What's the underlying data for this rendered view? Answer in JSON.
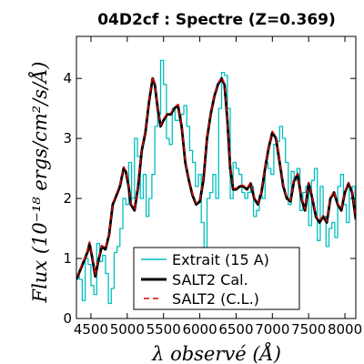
{
  "chart_data": {
    "type": "line",
    "title": "04D2cf : Spectre (Z=0.369)",
    "xlabel": "λ observé (Å)",
    "ylabel": "Flux (10⁻¹⁸ ergs/cm²/s/Å)",
    "xlim": [
      4300,
      8150
    ],
    "ylim": [
      0,
      4.7
    ],
    "xticks": [
      "4500",
      "5000",
      "5500",
      "6000",
      "6500",
      "7000",
      "7500",
      "8000"
    ],
    "xtick_values": [
      4500,
      5000,
      5500,
      6000,
      6500,
      7000,
      7500,
      8000
    ],
    "yticks": [
      "0",
      "1",
      "2",
      "3",
      "4"
    ],
    "ytick_values": [
      0,
      1,
      2,
      3,
      4
    ],
    "legend_position": "bottom-center",
    "series": [
      {
        "name": "Extrait (15 A)",
        "color": "#00bfbf",
        "style": "steps",
        "x": [
          4300,
          4340,
          4380,
          4420,
          4460,
          4500,
          4540,
          4580,
          4620,
          4660,
          4700,
          4740,
          4780,
          4820,
          4860,
          4900,
          4940,
          4980,
          5020,
          5060,
          5100,
          5140,
          5180,
          5220,
          5260,
          5300,
          5340,
          5380,
          5420,
          5460,
          5500,
          5540,
          5580,
          5620,
          5660,
          5700,
          5740,
          5780,
          5820,
          5860,
          5900,
          5940,
          5980,
          6020,
          6060,
          6100,
          6140,
          6180,
          6220,
          6260,
          6300,
          6340,
          6380,
          6420,
          6460,
          6500,
          6540,
          6580,
          6620,
          6660,
          6700,
          6740,
          6780,
          6820,
          6860,
          6900,
          6940,
          6980,
          7020,
          7060,
          7100,
          7140,
          7180,
          7220,
          7260,
          7300,
          7340,
          7380,
          7420,
          7460,
          7500,
          7540,
          7580,
          7620,
          7660,
          7700,
          7740,
          7780,
          7820,
          7860,
          7900,
          7940,
          7980,
          8020,
          8060,
          8100,
          8140
        ],
        "y": [
          0.7,
          0.65,
          0.3,
          1.0,
          0.9,
          0.55,
          0.4,
          1.25,
          0.95,
          1.05,
          0.75,
          0.25,
          0.5,
          1.1,
          1.2,
          1.5,
          2.0,
          1.9,
          2.6,
          2.0,
          3.0,
          2.7,
          2.0,
          2.4,
          1.7,
          2.0,
          2.4,
          3.2,
          3.4,
          4.3,
          3.9,
          3.0,
          2.9,
          3.5,
          3.3,
          3.3,
          3.4,
          3.55,
          3.2,
          2.8,
          2.6,
          2.2,
          2.4,
          1.6,
          1.0,
          2.0,
          2.1,
          2.4,
          2.0,
          3.5,
          4.1,
          4.05,
          3.5,
          2.0,
          2.6,
          2.5,
          2.4,
          2.1,
          2.0,
          2.1,
          2.2,
          1.7,
          1.8,
          2.05,
          2.0,
          2.6,
          2.5,
          2.4,
          2.9,
          2.95,
          3.2,
          3.0,
          2.6,
          1.9,
          2.45,
          2.3,
          2.5,
          1.8,
          2.1,
          2.2,
          1.55,
          2.3,
          2.5,
          1.3,
          2.2,
          1.7,
          1.2,
          1.5,
          1.6,
          1.35,
          2.2,
          2.4,
          1.9,
          1.6,
          2.15,
          2.2,
          1.9
        ]
      },
      {
        "name": "SALT2 Cal.",
        "color": "#000000",
        "style": "solid",
        "x": [
          4300,
          4350,
          4400,
          4450,
          4480,
          4520,
          4560,
          4600,
          4650,
          4700,
          4750,
          4800,
          4850,
          4900,
          4950,
          4980,
          5020,
          5050,
          5100,
          5150,
          5200,
          5250,
          5300,
          5350,
          5380,
          5420,
          5460,
          5500,
          5550,
          5600,
          5650,
          5700,
          5750,
          5800,
          5850,
          5900,
          5950,
          6000,
          6050,
          6100,
          6150,
          6200,
          6250,
          6300,
          6340,
          6380,
          6420,
          6460,
          6500,
          6550,
          6600,
          6650,
          6700,
          6750,
          6800,
          6850,
          6900,
          6950,
          7000,
          7050,
          7100,
          7150,
          7200,
          7250,
          7300,
          7350,
          7400,
          7450,
          7500,
          7550,
          7600,
          7650,
          7700,
          7750,
          7800,
          7850,
          7900,
          7950,
          8000,
          8050,
          8100,
          8150
        ],
        "y": [
          0.65,
          0.8,
          0.95,
          1.1,
          1.25,
          1.0,
          0.7,
          0.95,
          1.2,
          1.15,
          1.4,
          1.9,
          2.05,
          2.2,
          2.5,
          2.45,
          2.2,
          1.9,
          1.8,
          2.2,
          2.8,
          3.1,
          3.6,
          4.0,
          3.9,
          3.5,
          3.2,
          3.3,
          3.4,
          3.4,
          3.5,
          3.55,
          3.2,
          2.6,
          2.3,
          2.05,
          1.9,
          1.95,
          2.3,
          3.0,
          3.4,
          3.7,
          3.9,
          4.0,
          3.9,
          3.3,
          2.5,
          2.15,
          2.15,
          2.2,
          2.2,
          2.15,
          2.25,
          2.0,
          1.9,
          2.1,
          2.5,
          2.85,
          3.1,
          3.0,
          2.6,
          2.2,
          2.0,
          1.95,
          2.3,
          2.4,
          2.0,
          1.8,
          2.25,
          2.0,
          1.7,
          1.6,
          1.7,
          1.6,
          2.0,
          2.1,
          1.9,
          1.8,
          2.1,
          2.25,
          2.1,
          1.65
        ]
      },
      {
        "name": "SALT2 (C.L.)",
        "color": "#dd0000",
        "style": "dashed",
        "x": [
          4300,
          4350,
          4400,
          4450,
          4480,
          4520,
          4560,
          4600,
          4650,
          4700,
          4750,
          4800,
          4850,
          4900,
          4950,
          4980,
          5020,
          5050,
          5100,
          5150,
          5200,
          5250,
          5300,
          5350,
          5380,
          5420,
          5460,
          5500,
          5550,
          5600,
          5650,
          5700,
          5750,
          5800,
          5850,
          5900,
          5950,
          6000,
          6050,
          6100,
          6150,
          6200,
          6250,
          6300,
          6340,
          6380,
          6420,
          6460,
          6500,
          6550,
          6600,
          6650,
          6700,
          6750,
          6800,
          6850,
          6900,
          6950,
          7000,
          7050,
          7100,
          7150,
          7200,
          7250,
          7300,
          7350,
          7400,
          7450,
          7500,
          7550,
          7600,
          7650,
          7700,
          7750,
          7800,
          7850,
          7900,
          7950,
          8000,
          8050,
          8100,
          8150
        ],
        "y": [
          0.68,
          0.82,
          0.97,
          1.12,
          1.28,
          1.02,
          0.72,
          0.97,
          1.22,
          1.17,
          1.42,
          1.92,
          2.08,
          2.23,
          2.53,
          2.47,
          2.22,
          1.92,
          1.82,
          2.23,
          2.82,
          3.12,
          3.62,
          4.03,
          3.92,
          3.52,
          3.22,
          3.32,
          3.42,
          3.42,
          3.52,
          3.57,
          3.22,
          2.62,
          2.32,
          2.07,
          1.92,
          1.97,
          2.32,
          3.02,
          3.42,
          3.72,
          3.92,
          4.02,
          3.92,
          3.32,
          2.52,
          2.17,
          2.17,
          2.22,
          2.22,
          2.17,
          2.27,
          2.02,
          1.92,
          2.12,
          2.52,
          2.87,
          3.12,
          3.02,
          2.62,
          2.22,
          2.02,
          1.97,
          2.32,
          2.42,
          2.02,
          1.82,
          2.27,
          2.02,
          1.72,
          1.62,
          1.72,
          1.62,
          2.02,
          2.12,
          1.92,
          1.82,
          2.12,
          2.27,
          2.12,
          1.67
        ]
      }
    ]
  }
}
